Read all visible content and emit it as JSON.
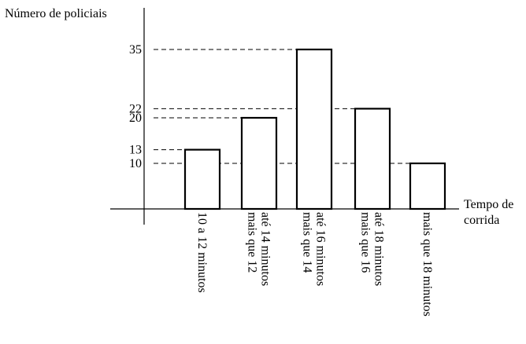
{
  "chart_data": {
    "type": "bar",
    "ylabel": "Número de policiais",
    "xlabel": [
      "Tempo de",
      "corrida"
    ],
    "categories": [
      [
        "10 a 12 minutos"
      ],
      [
        "mais que 12",
        "até 14 minutos"
      ],
      [
        "mais que 14",
        "até 16 minutos"
      ],
      [
        "mais que 16",
        "até 18 minutos"
      ],
      [
        "mais que 18 minutos"
      ]
    ],
    "values": [
      13,
      20,
      35,
      22,
      10
    ],
    "yticks": [
      10,
      13,
      20,
      22,
      35
    ],
    "ylim": [
      0,
      35
    ],
    "grid": false,
    "guide_lines": "dashed"
  }
}
